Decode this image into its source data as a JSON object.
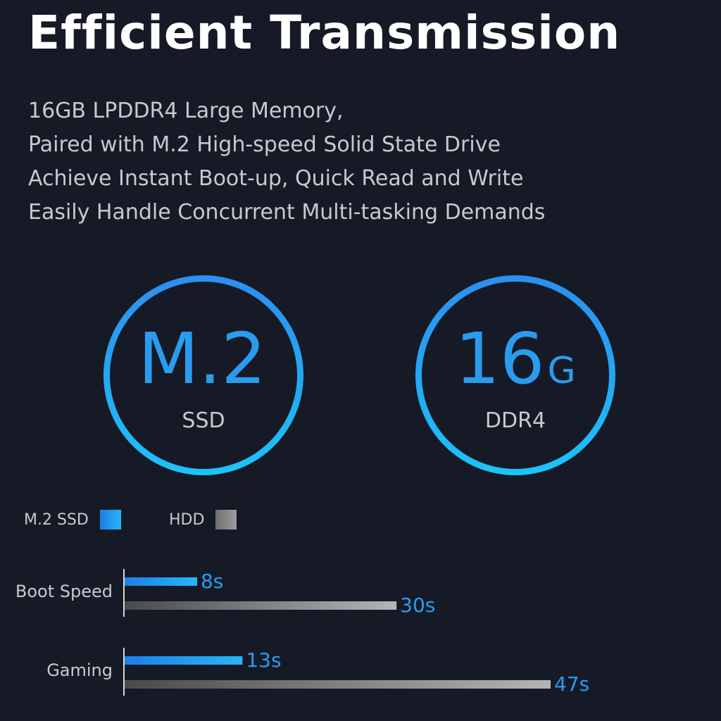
{
  "title": "Efficient Transmission",
  "description": [
    "16GB LPDDR4 Large Memory,",
    "Paired with M.2 High-speed Solid State Drive",
    "Achieve Instant Boot-up, Quick Read and Write",
    "Easily Handle Concurrent Multi-tasking Demands"
  ],
  "specs": [
    {
      "main": "M.2",
      "unit": "",
      "sub": "SSD"
    },
    {
      "main": "16",
      "unit": "G",
      "sub": "DDR4"
    }
  ],
  "colors": {
    "background": "#161a26",
    "accent": "#2a9cf0",
    "ssd_bar": "#1e9ef5",
    "hdd_bar": "#8a8a8a",
    "text": "#c9c9cc"
  },
  "chart_data": {
    "type": "bar",
    "orientation": "horizontal",
    "categories": [
      "Boot Speed",
      "Gaming"
    ],
    "series": [
      {
        "name": "M.2 SSD",
        "values": [
          8,
          13
        ],
        "labels": [
          "8s",
          "13s"
        ],
        "color": "#1e9ef5"
      },
      {
        "name": "HDD",
        "values": [
          30,
          47
        ],
        "labels": [
          "30s",
          "47s"
        ],
        "color": "#8a8a8a"
      }
    ],
    "unit": "s",
    "xlim": [
      0,
      47
    ],
    "grid": false,
    "legend_position": "top-left"
  }
}
